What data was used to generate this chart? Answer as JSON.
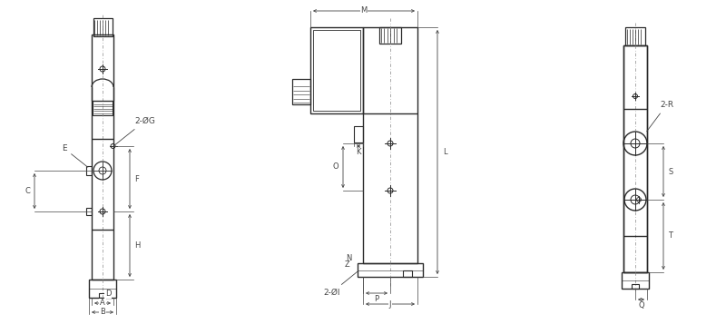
{
  "bg_color": "#ffffff",
  "line_color": "#2a2a2a",
  "dim_color": "#444444",
  "fig_width": 8.0,
  "fig_height": 3.68,
  "dpi": 100,
  "labels": {
    "A": "A",
    "B": "B",
    "C": "C",
    "D": "D",
    "E": "E",
    "F": "F",
    "H": "H",
    "G": "2-ØG",
    "K": "K",
    "L": "L",
    "M": "M",
    "N": "N",
    "O": "O",
    "P": "P",
    "I": "2-ØI",
    "J": "J",
    "Q": "Q",
    "R": "2-R",
    "S": "S",
    "T": "T"
  }
}
